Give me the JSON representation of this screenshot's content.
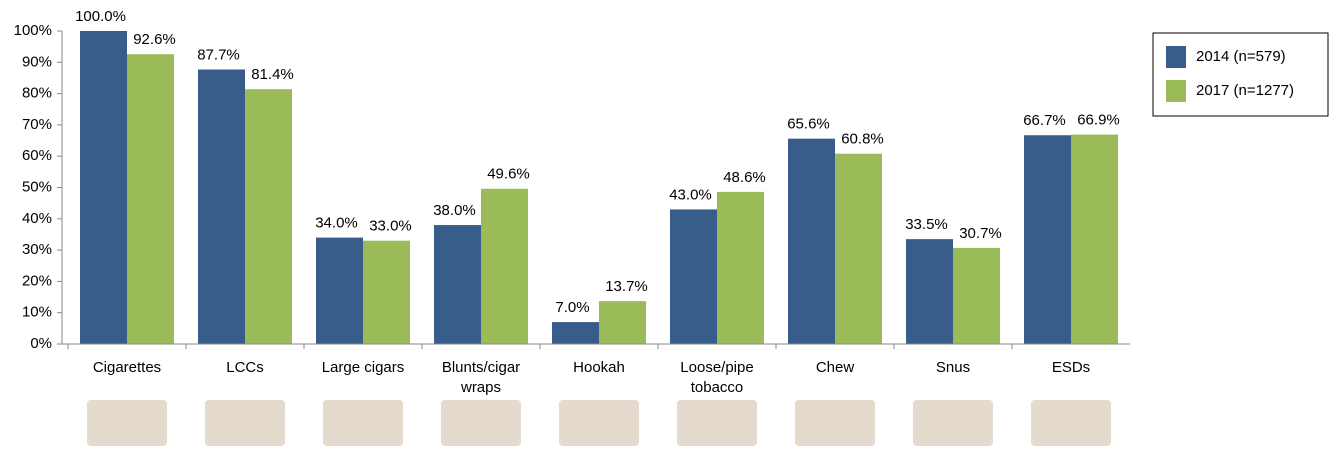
{
  "chart_data": {
    "type": "bar",
    "categories": [
      "Cigarettes",
      "LCCs",
      "Large cigars",
      "Blunts/cigar\nwraps",
      "Hookah",
      "Loose/pipe\ntobacco",
      "Chew",
      "Snus",
      "ESDs"
    ],
    "series": [
      {
        "name": "2014 (n=579)",
        "color": "#385d8a",
        "values": [
          100.0,
          87.7,
          34.0,
          38.0,
          7.0,
          43.0,
          65.6,
          33.5,
          66.7
        ],
        "value_labels": [
          "100.0%",
          "87.7%",
          "34.0%",
          "38.0%",
          "7.0%",
          "43.0%",
          "65.6%",
          "33.5%",
          "66.7%"
        ]
      },
      {
        "name": "2017 (n=1277)",
        "color": "#9bbb59",
        "values": [
          92.6,
          81.4,
          33.0,
          49.6,
          13.7,
          48.6,
          60.8,
          30.7,
          66.9
        ],
        "value_labels": [
          "92.6%",
          "81.4%",
          "33.0%",
          "49.6%",
          "13.7%",
          "48.6%",
          "60.8%",
          "30.7%",
          "66.9%"
        ]
      }
    ],
    "ylim": [
      0,
      100
    ],
    "yticks": [
      {
        "value": 0,
        "label": "0%"
      },
      {
        "value": 10,
        "label": "10%"
      },
      {
        "value": 20,
        "label": "20%"
      },
      {
        "value": 30,
        "label": "30%"
      },
      {
        "value": 40,
        "label": "40%"
      },
      {
        "value": 50,
        "label": "50%"
      },
      {
        "value": 60,
        "label": "60%"
      },
      {
        "value": 70,
        "label": "70%"
      },
      {
        "value": 80,
        "label": "80%"
      },
      {
        "value": 90,
        "label": "90%"
      },
      {
        "value": 100,
        "label": "100%"
      }
    ],
    "grid": false,
    "legend": "right"
  }
}
